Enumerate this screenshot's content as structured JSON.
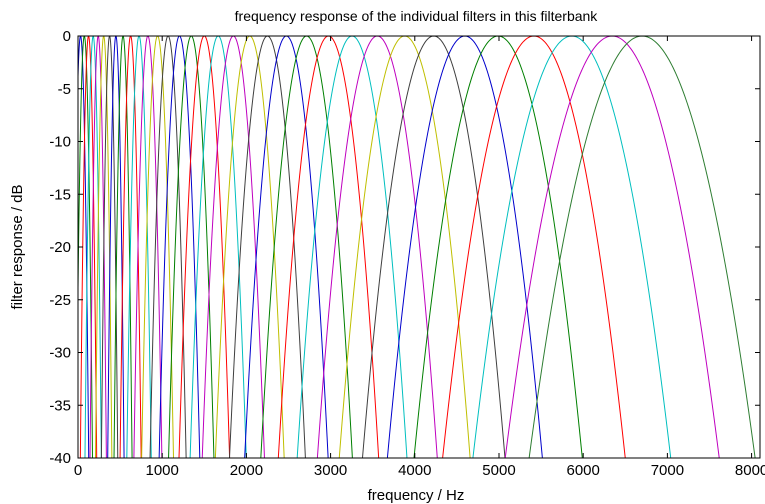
{
  "chart_data": {
    "type": "line",
    "title": "frequency response of the individual filters in this filterbank",
    "xlabel": "frequency / Hz",
    "ylabel": "filter response / dB",
    "xlim": [
      0,
      8100
    ],
    "ylim": [
      -40,
      0
    ],
    "xticks": [
      0,
      1000,
      2000,
      3000,
      4000,
      5000,
      6000,
      7000,
      8000
    ],
    "yticks": [
      0,
      -5,
      -10,
      -15,
      -20,
      -25,
      -30,
      -35,
      -40
    ],
    "grid": false,
    "legend": "none",
    "filter_model": "gaussian-in-dB",
    "filter_centers_hz": [
      30,
      75,
      125,
      180,
      240,
      305,
      375,
      450,
      535,
      625,
      725,
      830,
      945,
      1070,
      1205,
      1345,
      1500,
      1665,
      1845,
      2040,
      2250,
      2475,
      2715,
      2975,
      3255,
      3555,
      3880,
      4225,
      4595,
      4990,
      5415,
      5865,
      6345,
      6700
    ],
    "filter_bandwidth_ratio": 0.066,
    "filter_bandwidth_min_hz": 32,
    "series_colors": [
      "#0000cc",
      "#007f00",
      "#ff0000",
      "#00bfbf",
      "#bf00bf",
      "#bfbf00",
      "#3f3f3f"
    ],
    "last_series_color": "#2e7d32",
    "axis_color": "#000000",
    "background": "#ffffff"
  }
}
